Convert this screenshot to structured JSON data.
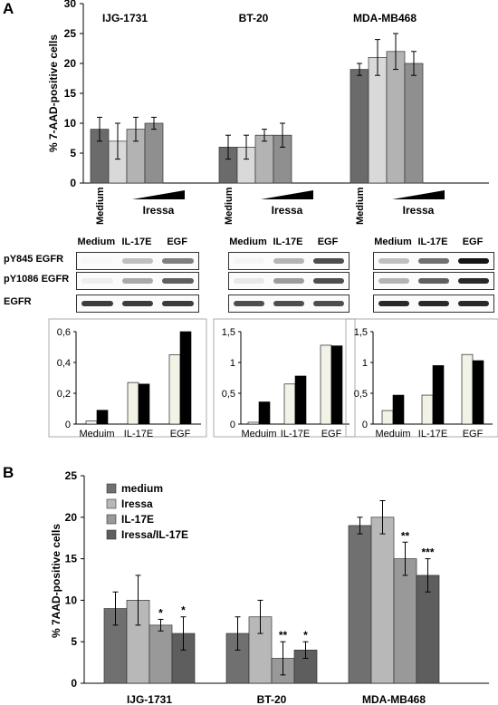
{
  "panel_labels": {
    "a": "A",
    "b": "B"
  },
  "chart_data": [
    {
      "id": "A-top",
      "type": "bar",
      "ylabel": "% 7-AAD-positive cells",
      "ylim": [
        0,
        30
      ],
      "yticks": [
        0,
        5,
        10,
        15,
        20,
        25,
        30
      ],
      "groups": [
        {
          "name": "IJG-1731",
          "values": [
            9,
            7,
            9,
            10
          ],
          "errors": [
            2,
            3,
            2,
            1
          ]
        },
        {
          "name": "BT-20",
          "values": [
            6,
            6,
            8,
            8
          ],
          "errors": [
            2,
            2,
            1,
            2
          ]
        },
        {
          "name": "MDA-MB468",
          "values": [
            19,
            21,
            22,
            20
          ],
          "errors": [
            1,
            3,
            3,
            2
          ]
        }
      ],
      "bar_colors": [
        "#6b6b6b",
        "#d9d9d9",
        "#b3b3b3",
        "#8f8f8f"
      ],
      "xlabels": {
        "medium": "Medium",
        "iressa": "Iressa"
      }
    },
    {
      "id": "A-bottom-1",
      "type": "bar",
      "categories": [
        "Meduim",
        "IL-17E",
        "EGF"
      ],
      "series": [
        {
          "values": [
            0.02,
            0.27,
            0.45
          ]
        },
        {
          "values": [
            0.09,
            0.26,
            0.6
          ]
        }
      ],
      "ylim": [
        0,
        0.6
      ],
      "yticks": [
        "0",
        "0,2",
        "0,4",
        "0,6"
      ],
      "colors": [
        "#f2f2e6",
        "#000000"
      ]
    },
    {
      "id": "A-bottom-2",
      "type": "bar",
      "categories": [
        "Meduim",
        "IL-17E",
        "EGF"
      ],
      "series": [
        {
          "values": [
            0.03,
            0.65,
            1.28
          ]
        },
        {
          "values": [
            0.36,
            0.78,
            1.27
          ]
        }
      ],
      "ylim": [
        0,
        1.5
      ],
      "yticks": [
        "0",
        "0,5",
        "1",
        "1,5"
      ],
      "colors": [
        "#f2f2e6",
        "#000000"
      ]
    },
    {
      "id": "A-bottom-3",
      "type": "bar",
      "categories": [
        "Meduim",
        "IL-17E",
        "EGF"
      ],
      "series": [
        {
          "values": [
            0.22,
            0.47,
            1.13
          ]
        },
        {
          "values": [
            0.47,
            0.95,
            1.03
          ]
        }
      ],
      "ylim": [
        0,
        1.5
      ],
      "yticks": [
        "0",
        "0,5",
        "1",
        "1,5"
      ],
      "colors": [
        "#f2f2e6",
        "#000000"
      ]
    },
    {
      "id": "B",
      "type": "bar",
      "categories": [
        "IJG-1731",
        "BT-20",
        "MDA-MB468"
      ],
      "series": [
        {
          "name": "medium",
          "values": [
            9,
            6,
            19
          ],
          "errors": [
            2,
            2,
            1
          ]
        },
        {
          "name": "Iressa",
          "values": [
            10,
            8,
            20
          ],
          "errors": [
            3,
            2,
            2
          ]
        },
        {
          "name": "IL-17E",
          "values": [
            7,
            3,
            15
          ],
          "errors": [
            0.7,
            2,
            2
          ]
        },
        {
          "name": "Iressa/IL-17E",
          "values": [
            6,
            4,
            13
          ],
          "errors": [
            2,
            1,
            2
          ]
        }
      ],
      "significance": [
        [
          "",
          "",
          "*",
          "*"
        ],
        [
          "",
          "",
          "**",
          "*"
        ],
        [
          "",
          "",
          "**",
          "***"
        ]
      ],
      "colors": [
        "#707070",
        "#b8b8b8",
        "#999999",
        "#5e5e5e"
      ],
      "ylabel": "% 7AAD-positive cells",
      "ylim": [
        0,
        25
      ],
      "yticks": [
        0,
        5,
        10,
        15,
        20,
        25
      ],
      "legend_position": "top-left"
    }
  ],
  "blots": [
    {
      "columns": [
        "Medium",
        "IL-17E",
        "EGF"
      ],
      "rows": [
        "pY845 EGFR",
        "pY1086 EGFR",
        "EGFR"
      ],
      "intensity": [
        [
          0.0,
          0.45,
          0.7
        ],
        [
          0.15,
          0.55,
          0.8
        ],
        [
          0.9,
          0.9,
          0.9
        ]
      ]
    },
    {
      "columns": [
        "Medium",
        "IL-17E",
        "EGF"
      ],
      "intensity": [
        [
          0.05,
          0.5,
          0.85
        ],
        [
          0.2,
          0.6,
          0.85
        ],
        [
          0.85,
          0.85,
          0.85
        ]
      ]
    },
    {
      "columns": [
        "Medium",
        "IL-17E",
        "EGF"
      ],
      "intensity": [
        [
          0.45,
          0.75,
          1.0
        ],
        [
          0.5,
          0.8,
          0.95
        ],
        [
          0.95,
          0.95,
          0.95
        ]
      ]
    }
  ]
}
